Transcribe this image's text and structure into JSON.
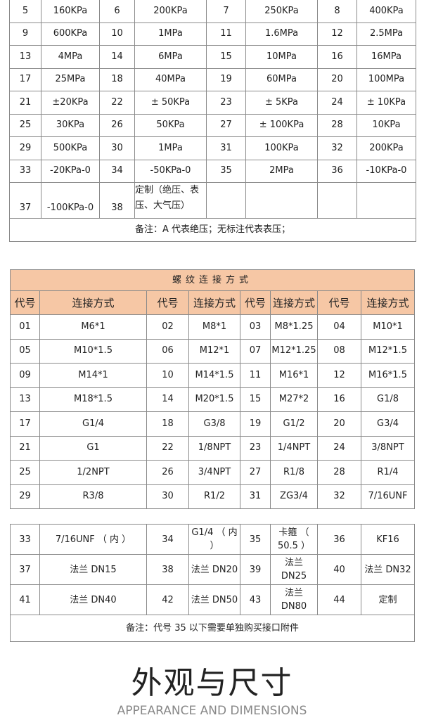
{
  "range_table": {
    "rows": [
      [
        [
          "5",
          "160KPa"
        ],
        [
          "6",
          "200KPa"
        ],
        [
          "7",
          "250KPa"
        ],
        [
          "8",
          "400KPa"
        ]
      ],
      [
        [
          "9",
          "600KPa"
        ],
        [
          "10",
          "1MPa"
        ],
        [
          "11",
          "1.6MPa"
        ],
        [
          "12",
          "2.5MPa"
        ]
      ],
      [
        [
          "13",
          "4MPa"
        ],
        [
          "14",
          "6MPa"
        ],
        [
          "15",
          "10MPa"
        ],
        [
          "16",
          "16MPa"
        ]
      ],
      [
        [
          "17",
          "25MPa"
        ],
        [
          "18",
          "40MPa"
        ],
        [
          "19",
          "60MPa"
        ],
        [
          "20",
          "100MPa"
        ]
      ],
      [
        [
          "21",
          "±20KPa"
        ],
        [
          "22",
          "± 50KPa"
        ],
        [
          "23",
          "± 5KPa"
        ],
        [
          "24",
          "± 10KPa"
        ]
      ],
      [
        [
          "25",
          "30KPa"
        ],
        [
          "26",
          "50KPa"
        ],
        [
          "27",
          "± 100KPa"
        ],
        [
          "28",
          "10KPa"
        ]
      ],
      [
        [
          "29",
          "500KPa"
        ],
        [
          "30",
          "1MPa"
        ],
        [
          "31",
          "100KPa"
        ],
        [
          "32",
          "200KPa"
        ]
      ],
      [
        [
          "33",
          "-20KPa-0"
        ],
        [
          "34",
          "-50KPa-0"
        ],
        [
          "35",
          "2MPa"
        ],
        [
          "36",
          "-10KPa-0"
        ]
      ]
    ],
    "last_row": [
      [
        "37",
        "-100KPa-0"
      ],
      [
        "38",
        "定制（绝压、表压、大气压）"
      ]
    ],
    "note": "备注：A 代表绝压；无标注代表表压；"
  },
  "thread_table": {
    "title": "螺纹连接方式",
    "header_code": "代号",
    "header_conn": "连接方式",
    "rows": [
      [
        [
          "01",
          "M6*1"
        ],
        [
          "02",
          "M8*1"
        ],
        [
          "03",
          "M8*1.25"
        ],
        [
          "04",
          "M10*1"
        ]
      ],
      [
        [
          "05",
          "M10*1.5"
        ],
        [
          "06",
          "M12*1"
        ],
        [
          "07",
          "M12*1.25"
        ],
        [
          "08",
          "M12*1.5"
        ]
      ],
      [
        [
          "09",
          "M14*1"
        ],
        [
          "10",
          "M14*1.5"
        ],
        [
          "11",
          "M16*1"
        ],
        [
          "12",
          "M16*1.5"
        ]
      ],
      [
        [
          "13",
          "M18*1.5"
        ],
        [
          "14",
          "M20*1.5"
        ],
        [
          "15",
          "M27*2"
        ],
        [
          "16",
          "G1/8"
        ]
      ],
      [
        [
          "17",
          "G1/4"
        ],
        [
          "18",
          "G3/8"
        ],
        [
          "19",
          "G1/2"
        ],
        [
          "20",
          "G3/4"
        ]
      ],
      [
        [
          "21",
          "G1"
        ],
        [
          "22",
          "1/8NPT"
        ],
        [
          "23",
          "1/4NPT"
        ],
        [
          "24",
          "3/8NPT"
        ]
      ],
      [
        [
          "25",
          "1/2NPT"
        ],
        [
          "26",
          "3/4NPT"
        ],
        [
          "27",
          "R1/8"
        ],
        [
          "28",
          "R1/4"
        ]
      ],
      [
        [
          "29",
          "R3/8"
        ],
        [
          "30",
          "R1/2"
        ],
        [
          "31",
          "ZG3/4"
        ],
        [
          "32",
          "7/16UNF"
        ]
      ]
    ]
  },
  "flange_table": {
    "rows": [
      [
        [
          "33",
          "7/16UNF （ 内 ）"
        ],
        [
          "34",
          "G1/4 （ 内 ）"
        ],
        [
          "35",
          "卡箍 （ 50.5 ）"
        ],
        [
          "36",
          "KF16"
        ]
      ],
      [
        [
          "37",
          "法兰 DN15"
        ],
        [
          "38",
          "法兰 DN20"
        ],
        [
          "39",
          "法兰 DN25"
        ],
        [
          "40",
          "法兰 DN32"
        ]
      ],
      [
        [
          "41",
          "法兰 DN40"
        ],
        [
          "42",
          "法兰 DN50"
        ],
        [
          "43",
          "法兰 DN80"
        ],
        [
          "44",
          "定制"
        ]
      ]
    ],
    "note": "备注：代号 35 以下需要单独购买接口附件"
  },
  "section": {
    "title": "外观与尺寸",
    "subtitle": "APPEARANCE AND DIMENSIONS"
  },
  "colors": {
    "header_bg": "#f6c7a5",
    "border": "#8a8a8a"
  }
}
